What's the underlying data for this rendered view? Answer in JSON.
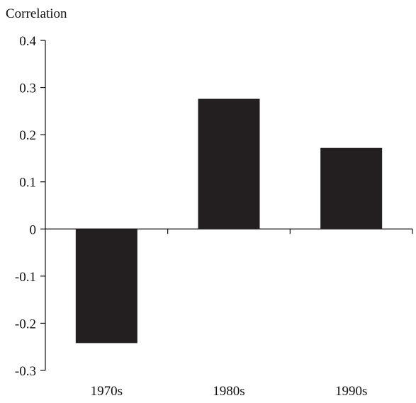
{
  "chart_data": {
    "type": "bar",
    "title": "",
    "ylabel": "Correlation",
    "xlabel": "",
    "categories": [
      "1970s",
      "1980s",
      "1990s"
    ],
    "values": [
      -0.242,
      0.276,
      0.172
    ],
    "ylim": [
      -0.3,
      0.4
    ],
    "yticks": [
      0.4,
      0.3,
      0.2,
      0.1,
      0,
      -0.1,
      -0.2,
      -0.3
    ],
    "ytick_labels": [
      "0.4",
      "0.3",
      "0.2",
      "0.1",
      "0",
      "-0.1",
      "-0.2",
      "-0.3"
    ],
    "bar_color": "#231f20",
    "grid": false,
    "legend": "none"
  }
}
